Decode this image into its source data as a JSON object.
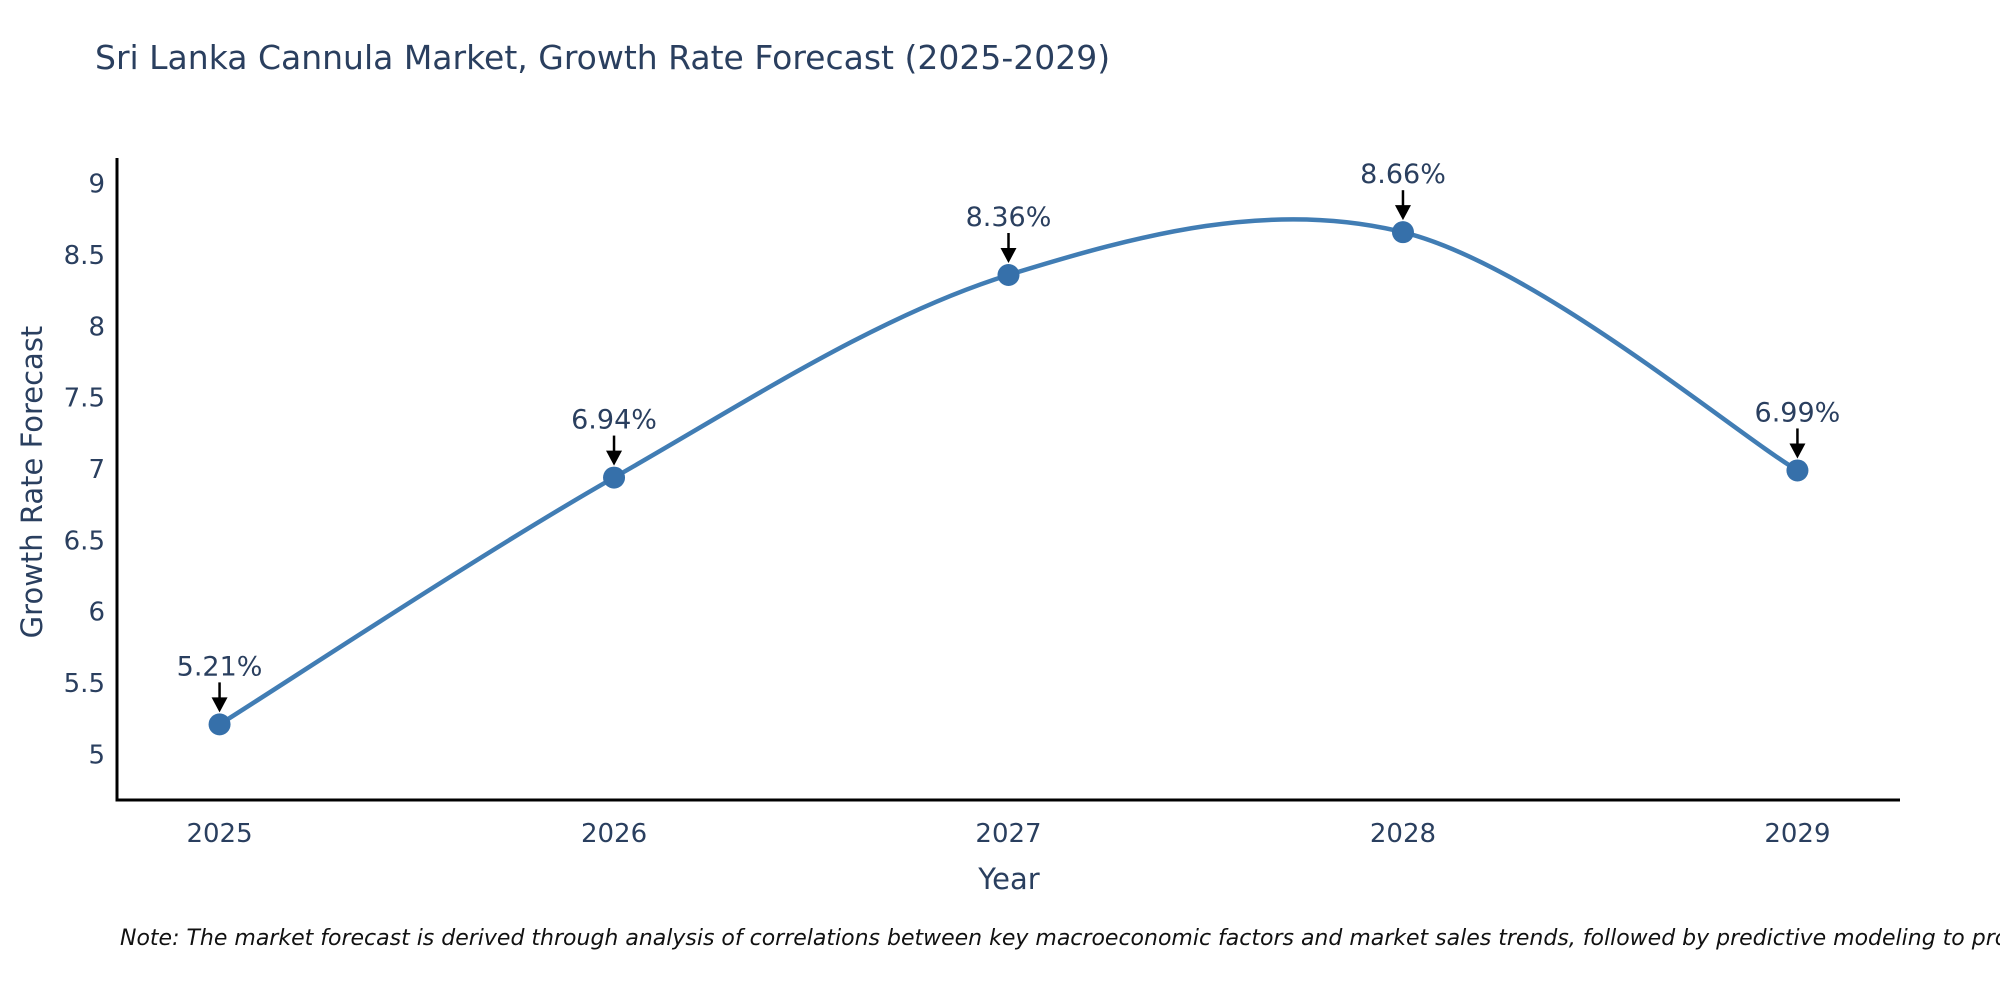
{
  "title": "Sri Lanka Cannula Market, Growth Rate Forecast (2025-2029)",
  "note": "Note: The market forecast is derived through analysis of correlations between key macroeconomic factors and market sales trends, followed by predictive modeling to project future sales",
  "chart_data": {
    "type": "line",
    "line_shape": "spline",
    "title": "Sri Lanka Cannula Market, Growth Rate Forecast (2025-2029)",
    "xlabel": "Year",
    "ylabel": "Growth Rate Forecast",
    "x": [
      2025,
      2026,
      2027,
      2028,
      2029
    ],
    "y": [
      5.21,
      6.94,
      8.36,
      8.66,
      6.99
    ],
    "point_labels": [
      "5.21%",
      "6.94%",
      "8.36%",
      "8.66%",
      "6.99%"
    ],
    "xticks": [
      "2025",
      "2026",
      "2027",
      "2028",
      "2029"
    ],
    "yticks": [
      5,
      5.5,
      6,
      6.5,
      7,
      7.5,
      8,
      8.5,
      9
    ],
    "ytick_labels": [
      "5",
      "5.5",
      "6",
      "6.5",
      "7",
      "7.5",
      "8",
      "8.5",
      "9"
    ],
    "xlim": [
      2024.74,
      2029.26
    ],
    "ylim": [
      4.68,
      9.18
    ],
    "grid": false,
    "legend": "none",
    "colors": {
      "line": "#417db4",
      "marker": "#3670aa",
      "axis": "#000000",
      "arrow": "#000000",
      "text": "#2a3f5f",
      "background": "#ffffff"
    }
  }
}
